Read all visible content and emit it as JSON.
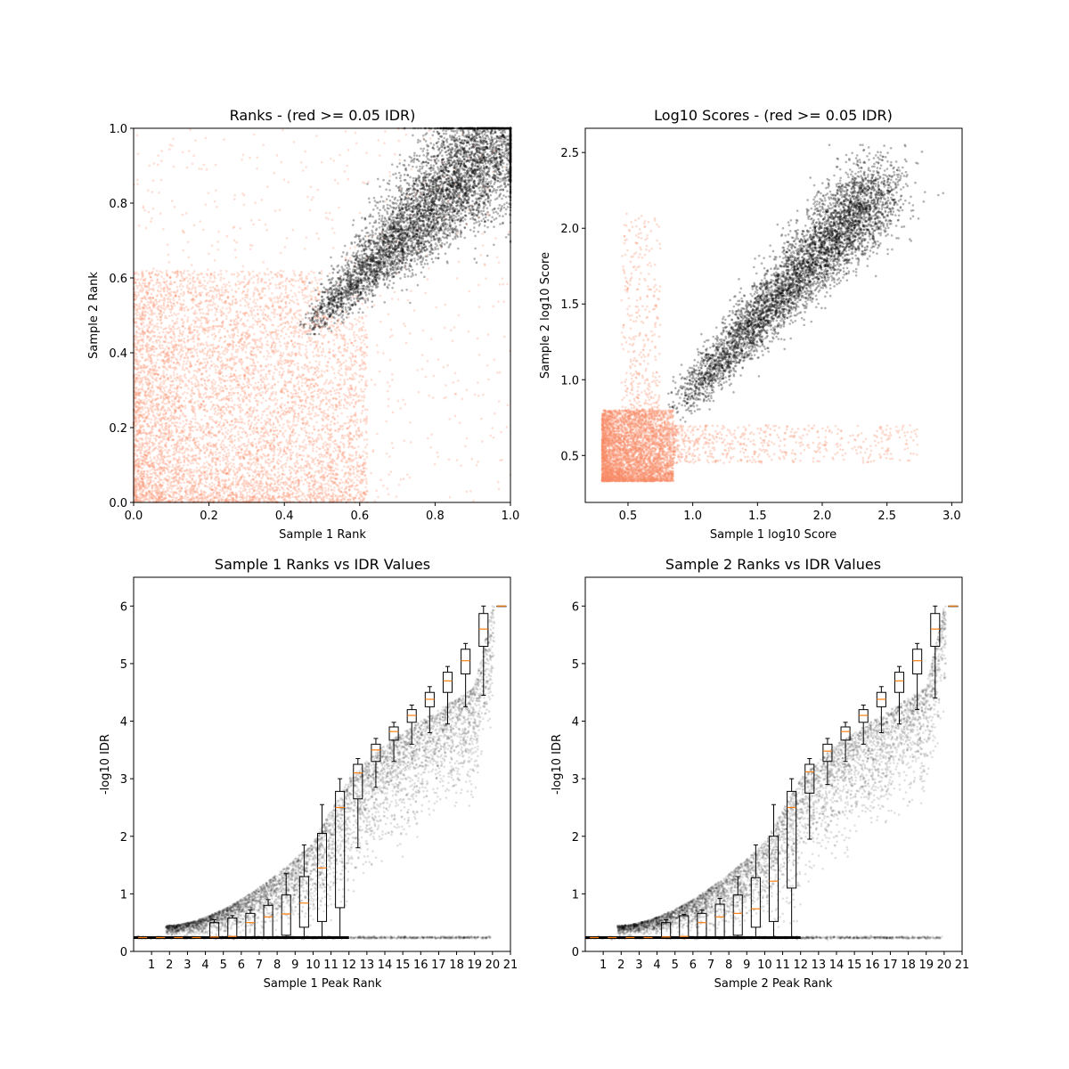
{
  "colors": {
    "pass": "#000000",
    "fail": "#fa8b67",
    "median": "#ff7f0e",
    "box": "#000000"
  },
  "chart_data": [
    {
      "type": "scatter",
      "panel": "ranks",
      "title": "Ranks - (red >= 0.05 IDR)",
      "xlabel": "Sample 1 Rank",
      "ylabel": "Sample 2 Rank",
      "xlim": [
        0,
        1
      ],
      "ylim": [
        0,
        1
      ],
      "xticks": [
        "0.0",
        "0.2",
        "0.4",
        "0.6",
        "0.8",
        "1.0"
      ],
      "yticks": [
        "0.0",
        "0.2",
        "0.4",
        "0.6",
        "0.8",
        "1.0"
      ],
      "series": [
        {
          "color": "fail",
          "region": "ranks below threshold, density decreasing with rank",
          "x_range": [
            0,
            0.62
          ],
          "y_range": [
            0,
            0.62
          ]
        },
        {
          "color": "pass",
          "region": "correlated band along diagonal",
          "x_range": [
            0.44,
            1.0
          ],
          "y_range": [
            0.45,
            1.0
          ]
        }
      ]
    },
    {
      "type": "scatter",
      "panel": "scores",
      "title": "Log10 Scores - (red >= 0.05 IDR)",
      "xlabel": "Sample 1 log10 Score",
      "ylabel": "Sample 2 log10 Score",
      "xlim": [
        0.17,
        3.08
      ],
      "ylim": [
        0.19,
        2.66
      ],
      "xticks": [
        "0.5",
        "1.0",
        "1.5",
        "2.0",
        "2.5",
        "3.0"
      ],
      "yticks": [
        "0.5",
        "1.0",
        "1.5",
        "2.0",
        "2.5"
      ],
      "series": [
        {
          "color": "fail",
          "region": "low score cluster",
          "x_range": [
            0.3,
            0.85
          ],
          "y_range": [
            0.33,
            0.8
          ]
        },
        {
          "color": "pass",
          "region": "correlated band",
          "x_range": [
            0.75,
            2.8
          ],
          "y_range": [
            0.7,
            2.55
          ]
        }
      ]
    },
    {
      "type": "scatter",
      "panel": "idr1",
      "title": "Sample 1 Ranks vs IDR Values",
      "xlabel": "Sample 1 Peak Rank",
      "ylabel": "-log10 IDR",
      "xlim": [
        0,
        21
      ],
      "ylim": [
        0,
        6.5
      ],
      "xticks": [
        "1",
        "2",
        "3",
        "4",
        "5",
        "6",
        "7",
        "8",
        "9",
        "10",
        "11",
        "12",
        "13",
        "14",
        "15",
        "16",
        "17",
        "18",
        "19",
        "20",
        "21"
      ],
      "yticks": [
        "0",
        "1",
        "2",
        "3",
        "4",
        "5",
        "6"
      ],
      "boxes": [
        {
          "bin": 1,
          "q1": 0.24,
          "median": 0.24,
          "q3": 0.24,
          "wlo": 0.24,
          "whi": 0.24
        },
        {
          "bin": 2,
          "q1": 0.24,
          "median": 0.24,
          "q3": 0.24,
          "wlo": 0.24,
          "whi": 0.24
        },
        {
          "bin": 3,
          "q1": 0.24,
          "median": 0.24,
          "q3": 0.24,
          "wlo": 0.24,
          "whi": 0.24
        },
        {
          "bin": 4,
          "q1": 0.24,
          "median": 0.24,
          "q3": 0.24,
          "wlo": 0.24,
          "whi": 0.24
        },
        {
          "bin": 5,
          "q1": 0.24,
          "median": 0.25,
          "q3": 0.5,
          "wlo": 0.24,
          "whi": 0.55
        },
        {
          "bin": 6,
          "q1": 0.24,
          "median": 0.26,
          "q3": 0.58,
          "wlo": 0.24,
          "whi": 0.62
        },
        {
          "bin": 7,
          "q1": 0.24,
          "median": 0.5,
          "q3": 0.66,
          "wlo": 0.24,
          "whi": 0.72
        },
        {
          "bin": 8,
          "q1": 0.24,
          "median": 0.6,
          "q3": 0.8,
          "wlo": 0.24,
          "whi": 0.9
        },
        {
          "bin": 9,
          "q1": 0.28,
          "median": 0.65,
          "q3": 0.98,
          "wlo": 0.24,
          "whi": 1.35
        },
        {
          "bin": 10,
          "q1": 0.42,
          "median": 0.84,
          "q3": 1.3,
          "wlo": 0.24,
          "whi": 1.85
        },
        {
          "bin": 11,
          "q1": 0.52,
          "median": 1.45,
          "q3": 2.05,
          "wlo": 0.24,
          "whi": 2.55
        },
        {
          "bin": 12,
          "q1": 0.76,
          "median": 2.5,
          "q3": 2.78,
          "wlo": 0.24,
          "whi": 3.0
        },
        {
          "bin": 13,
          "q1": 2.65,
          "median": 3.1,
          "q3": 3.25,
          "wlo": 1.8,
          "whi": 3.35
        },
        {
          "bin": 14,
          "q1": 3.3,
          "median": 3.5,
          "q3": 3.6,
          "wlo": 2.85,
          "whi": 3.7
        },
        {
          "bin": 15,
          "q1": 3.67,
          "median": 3.82,
          "q3": 3.9,
          "wlo": 3.3,
          "whi": 3.98
        },
        {
          "bin": 16,
          "q1": 3.98,
          "median": 4.1,
          "q3": 4.2,
          "wlo": 3.6,
          "whi": 4.28
        },
        {
          "bin": 17,
          "q1": 4.25,
          "median": 4.38,
          "q3": 4.5,
          "wlo": 3.8,
          "whi": 4.6
        },
        {
          "bin": 18,
          "q1": 4.5,
          "median": 4.7,
          "q3": 4.85,
          "wlo": 3.95,
          "whi": 4.95
        },
        {
          "bin": 19,
          "q1": 4.82,
          "median": 5.05,
          "q3": 5.25,
          "wlo": 4.25,
          "whi": 5.35
        },
        {
          "bin": 20,
          "q1": 5.3,
          "median": 5.6,
          "q3": 5.87,
          "wlo": 4.45,
          "whi": 6.0
        },
        {
          "bin": 21,
          "q1": 6.0,
          "median": 6.0,
          "q3": 6.0,
          "wlo": 6.0,
          "whi": 6.0
        }
      ]
    },
    {
      "type": "scatter",
      "panel": "idr2",
      "title": "Sample 2 Ranks vs IDR Values",
      "xlabel": "Sample 2 Peak Rank",
      "ylabel": "-log10 IDR",
      "xlim": [
        0,
        21
      ],
      "ylim": [
        0,
        6.5
      ],
      "xticks": [
        "1",
        "2",
        "3",
        "4",
        "5",
        "6",
        "7",
        "8",
        "9",
        "10",
        "11",
        "12",
        "13",
        "14",
        "15",
        "16",
        "17",
        "18",
        "19",
        "20",
        "21"
      ],
      "yticks": [
        "0",
        "1",
        "2",
        "3",
        "4",
        "5",
        "6"
      ],
      "boxes": [
        {
          "bin": 1,
          "q1": 0.24,
          "median": 0.24,
          "q3": 0.24,
          "wlo": 0.24,
          "whi": 0.24
        },
        {
          "bin": 2,
          "q1": 0.24,
          "median": 0.24,
          "q3": 0.24,
          "wlo": 0.24,
          "whi": 0.24
        },
        {
          "bin": 3,
          "q1": 0.24,
          "median": 0.24,
          "q3": 0.24,
          "wlo": 0.24,
          "whi": 0.24
        },
        {
          "bin": 4,
          "q1": 0.24,
          "median": 0.24,
          "q3": 0.24,
          "wlo": 0.24,
          "whi": 0.24
        },
        {
          "bin": 5,
          "q1": 0.24,
          "median": 0.25,
          "q3": 0.5,
          "wlo": 0.24,
          "whi": 0.55
        },
        {
          "bin": 6,
          "q1": 0.24,
          "median": 0.26,
          "q3": 0.62,
          "wlo": 0.24,
          "whi": 0.64
        },
        {
          "bin": 7,
          "q1": 0.24,
          "median": 0.5,
          "q3": 0.66,
          "wlo": 0.24,
          "whi": 0.72
        },
        {
          "bin": 8,
          "q1": 0.24,
          "median": 0.6,
          "q3": 0.82,
          "wlo": 0.24,
          "whi": 0.92
        },
        {
          "bin": 9,
          "q1": 0.28,
          "median": 0.66,
          "q3": 0.98,
          "wlo": 0.24,
          "whi": 1.3
        },
        {
          "bin": 10,
          "q1": 0.42,
          "median": 0.74,
          "q3": 1.28,
          "wlo": 0.24,
          "whi": 1.85
        },
        {
          "bin": 11,
          "q1": 0.52,
          "median": 1.22,
          "q3": 2.0,
          "wlo": 0.24,
          "whi": 2.55
        },
        {
          "bin": 12,
          "q1": 1.1,
          "median": 2.5,
          "q3": 2.78,
          "wlo": 0.24,
          "whi": 3.0
        },
        {
          "bin": 13,
          "q1": 2.75,
          "median": 3.12,
          "q3": 3.25,
          "wlo": 1.95,
          "whi": 3.35
        },
        {
          "bin": 14,
          "q1": 3.3,
          "median": 3.48,
          "q3": 3.6,
          "wlo": 2.9,
          "whi": 3.7
        },
        {
          "bin": 15,
          "q1": 3.67,
          "median": 3.82,
          "q3": 3.9,
          "wlo": 3.3,
          "whi": 3.98
        },
        {
          "bin": 16,
          "q1": 3.98,
          "median": 4.1,
          "q3": 4.2,
          "wlo": 3.6,
          "whi": 4.28
        },
        {
          "bin": 17,
          "q1": 4.25,
          "median": 4.38,
          "q3": 4.5,
          "wlo": 3.8,
          "whi": 4.6
        },
        {
          "bin": 18,
          "q1": 4.5,
          "median": 4.7,
          "q3": 4.85,
          "wlo": 3.95,
          "whi": 4.95
        },
        {
          "bin": 19,
          "q1": 4.82,
          "median": 5.05,
          "q3": 5.25,
          "wlo": 4.2,
          "whi": 5.35
        },
        {
          "bin": 20,
          "q1": 5.3,
          "median": 5.6,
          "q3": 5.87,
          "wlo": 4.4,
          "whi": 6.0
        },
        {
          "bin": 21,
          "q1": 6.0,
          "median": 6.0,
          "q3": 6.0,
          "wlo": 6.0,
          "whi": 6.0
        }
      ]
    }
  ]
}
